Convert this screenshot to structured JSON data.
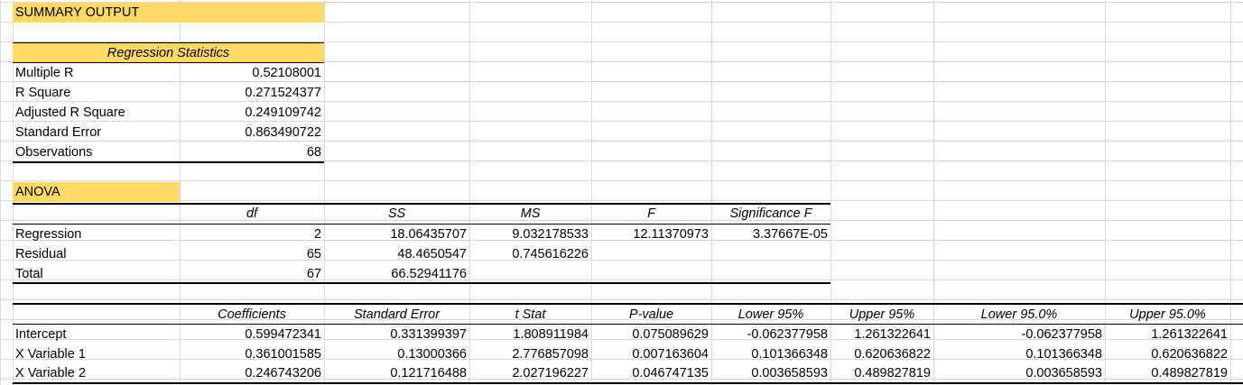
{
  "title": "SUMMARY OUTPUT",
  "regression_statistics": {
    "header": "Regression Statistics",
    "rows": [
      {
        "label": "Multiple R",
        "value": "0.52108001"
      },
      {
        "label": "R Square",
        "value": "0.271524377"
      },
      {
        "label": "Adjusted R Square",
        "value": "0.249109742"
      },
      {
        "label": "Standard Error",
        "value": "0.863490722"
      },
      {
        "label": "Observations",
        "value": "68"
      }
    ]
  },
  "anova": {
    "title": "ANOVA",
    "headers": [
      "df",
      "SS",
      "MS",
      "F",
      "Significance F"
    ],
    "rows": [
      {
        "label": "Regression",
        "values": [
          "2",
          "18.06435707",
          "9.032178533",
          "12.11370973",
          "3.37667E-05"
        ]
      },
      {
        "label": "Residual",
        "values": [
          "65",
          "48.4650547",
          "0.745616226",
          "",
          ""
        ]
      },
      {
        "label": "Total",
        "values": [
          "67",
          "66.52941176",
          "",
          "",
          ""
        ]
      }
    ]
  },
  "coefficients": {
    "headers": [
      "Coefficients",
      "Standard Error",
      "t Stat",
      "P-value",
      "Lower 95%",
      "Upper 95%",
      "Lower 95.0%",
      "Upper 95.0%"
    ],
    "rows": [
      {
        "label": "Intercept",
        "values": [
          "0.599472341",
          "0.331399397",
          "1.808911984",
          "0.075089629",
          "-0.062377958",
          "1.261322641",
          "-0.062377958",
          "1.261322641"
        ]
      },
      {
        "label": "X Variable 1",
        "values": [
          "0.361001585",
          "0.13000366",
          "2.776857098",
          "0.007163604",
          "0.101366348",
          "0.620636822",
          "0.101366348",
          "0.620636822"
        ]
      },
      {
        "label": "X Variable 2",
        "values": [
          "0.246743206",
          "0.121716488",
          "2.027196227",
          "0.046747135",
          "0.003658593",
          "0.489827819",
          "0.003658593",
          "0.489827819"
        ]
      }
    ]
  },
  "colors": {
    "highlight": "#ffd966",
    "gridline": "#d9d9d9"
  }
}
